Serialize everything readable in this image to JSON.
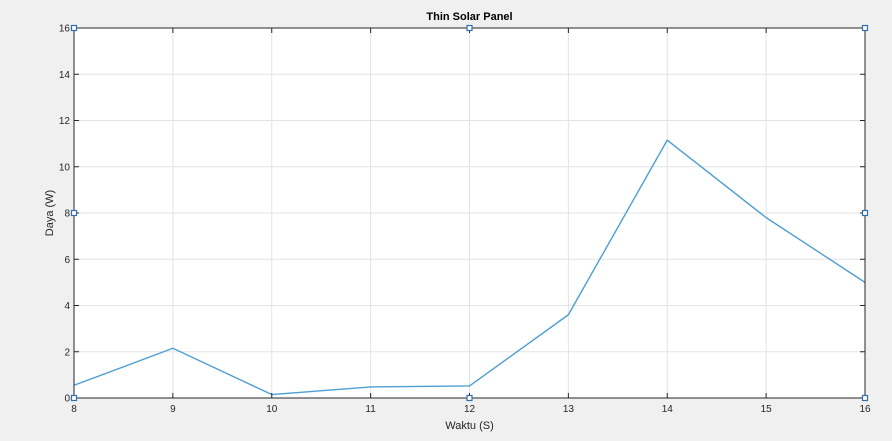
{
  "chart_data": {
    "type": "line",
    "title": "Thin Solar Panel",
    "xlabel": "Waktu (S)",
    "ylabel": "Daya (W)",
    "xlim": [
      8,
      16
    ],
    "ylim": [
      0,
      16
    ],
    "x_ticks": [
      8,
      9,
      10,
      11,
      12,
      13,
      14,
      15,
      16
    ],
    "y_ticks": [
      0,
      2,
      4,
      6,
      8,
      10,
      12,
      14,
      16
    ],
    "grid": true,
    "series": [
      {
        "x": [
          8,
          9,
          10,
          11,
          12,
          13,
          14,
          15,
          16
        ],
        "y": [
          0.55,
          2.15,
          0.15,
          0.48,
          0.52,
          3.6,
          11.15,
          7.8,
          5.0
        ],
        "color": "#4f9fd1"
      }
    ],
    "selection_handle_color": "#2f6fb0"
  }
}
